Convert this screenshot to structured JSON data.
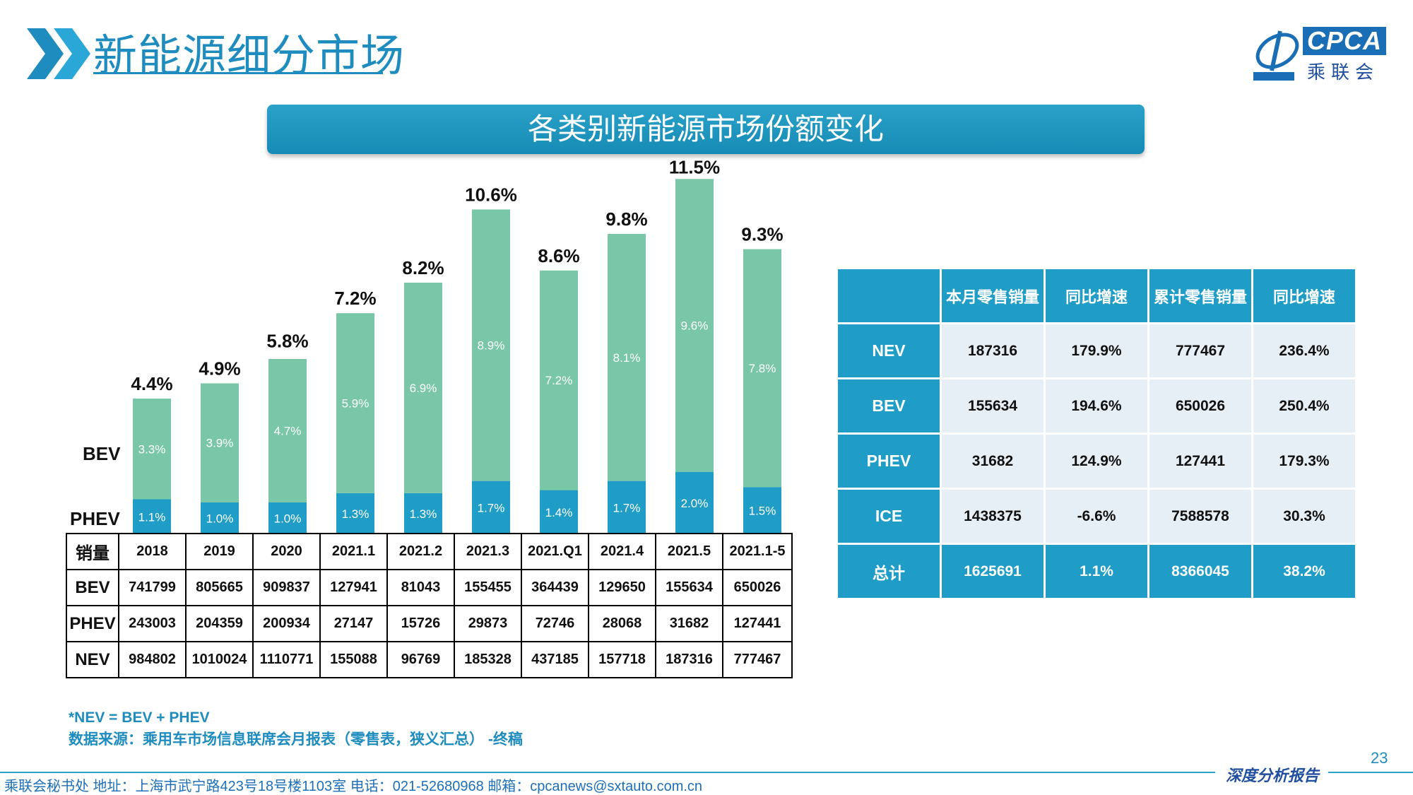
{
  "header": {
    "title": "新能源细分市场",
    "logo_text": "CPCA",
    "logo_cn": "乘联会",
    "banner_title": "各类别新能源市场份额变化"
  },
  "colors": {
    "bev": "#79c7a7",
    "phev": "#1f9dc6",
    "accent": "#1e8cbf"
  },
  "chart_data": {
    "type": "bar",
    "stacked": true,
    "categories": [
      "2018",
      "2019",
      "2020",
      "2021.1",
      "2021.2",
      "2021.3",
      "2021.Q1",
      "2021.4",
      "2021.5",
      "2021.1-5"
    ],
    "series": [
      {
        "name": "PHEV",
        "values": [
          1.1,
          1.0,
          1.0,
          1.3,
          1.3,
          1.7,
          1.4,
          1.7,
          2.0,
          1.5
        ],
        "labels": [
          "1.1%",
          "1.0%",
          "1.0%",
          "1.3%",
          "1.3%",
          "1.7%",
          "1.4%",
          "1.7%",
          "2.0%",
          "1.5%"
        ]
      },
      {
        "name": "BEV",
        "values": [
          3.3,
          3.9,
          4.7,
          5.9,
          6.9,
          8.9,
          7.2,
          8.1,
          9.6,
          7.8
        ],
        "labels": [
          "3.3%",
          "3.9%",
          "4.7%",
          "5.9%",
          "6.9%",
          "8.9%",
          "7.2%",
          "8.1%",
          "9.6%",
          "7.8%"
        ]
      }
    ],
    "totals": [
      4.4,
      4.9,
      5.8,
      7.2,
      8.2,
      10.6,
      8.6,
      9.8,
      11.5,
      9.3
    ],
    "total_labels": [
      "4.4%",
      "4.9%",
      "5.8%",
      "7.2%",
      "8.2%",
      "10.6%",
      "8.6%",
      "9.8%",
      "11.5%",
      "9.3%"
    ],
    "series_side_labels": [
      "BEV",
      "PHEV"
    ],
    "ylim": [
      0,
      12
    ]
  },
  "sales_table": {
    "header_label": "销量",
    "rows": [
      {
        "label": "BEV",
        "values": [
          "741799",
          "805665",
          "909837",
          "127941",
          "81043",
          "155455",
          "364439",
          "129650",
          "155634",
          "650026"
        ]
      },
      {
        "label": "PHEV",
        "values": [
          "243003",
          "204359",
          "200934",
          "27147",
          "15726",
          "29873",
          "72746",
          "28068",
          "31682",
          "127441"
        ]
      },
      {
        "label": "NEV",
        "values": [
          "984802",
          "1010024",
          "1110771",
          "155088",
          "96769",
          "185328",
          "437185",
          "157718",
          "187316",
          "777467"
        ]
      }
    ]
  },
  "share_table": {
    "headers": [
      "本月零售销量",
      "同比增速",
      "累计零售销量",
      "同比增速"
    ],
    "rows": [
      {
        "label": "NEV",
        "values": [
          "187316",
          "179.9%",
          "777467",
          "236.4%"
        ]
      },
      {
        "label": "BEV",
        "values": [
          "155634",
          "194.6%",
          "650026",
          "250.4%"
        ]
      },
      {
        "label": "PHEV",
        "values": [
          "31682",
          "124.9%",
          "127441",
          "179.3%"
        ]
      },
      {
        "label": "ICE",
        "values": [
          "1438375",
          "-6.6%",
          "7588578",
          "30.3%"
        ]
      },
      {
        "label": "总计",
        "values": [
          "1625691",
          "1.1%",
          "8366045",
          "38.2%"
        ]
      }
    ]
  },
  "notes": {
    "formula": "*NEV = BEV + PHEV",
    "source": "数据来源：乘用车市场信息联席会月报表（零售表，狭义汇总） -终稿"
  },
  "footer": {
    "page_number": "23",
    "report_label": "深度分析报告",
    "info": "乘联会秘书处   地址：上海市武宁路423号18号楼1103室   电话：021-52680968   邮箱：cpcanews@sxtauto.com.cn"
  }
}
